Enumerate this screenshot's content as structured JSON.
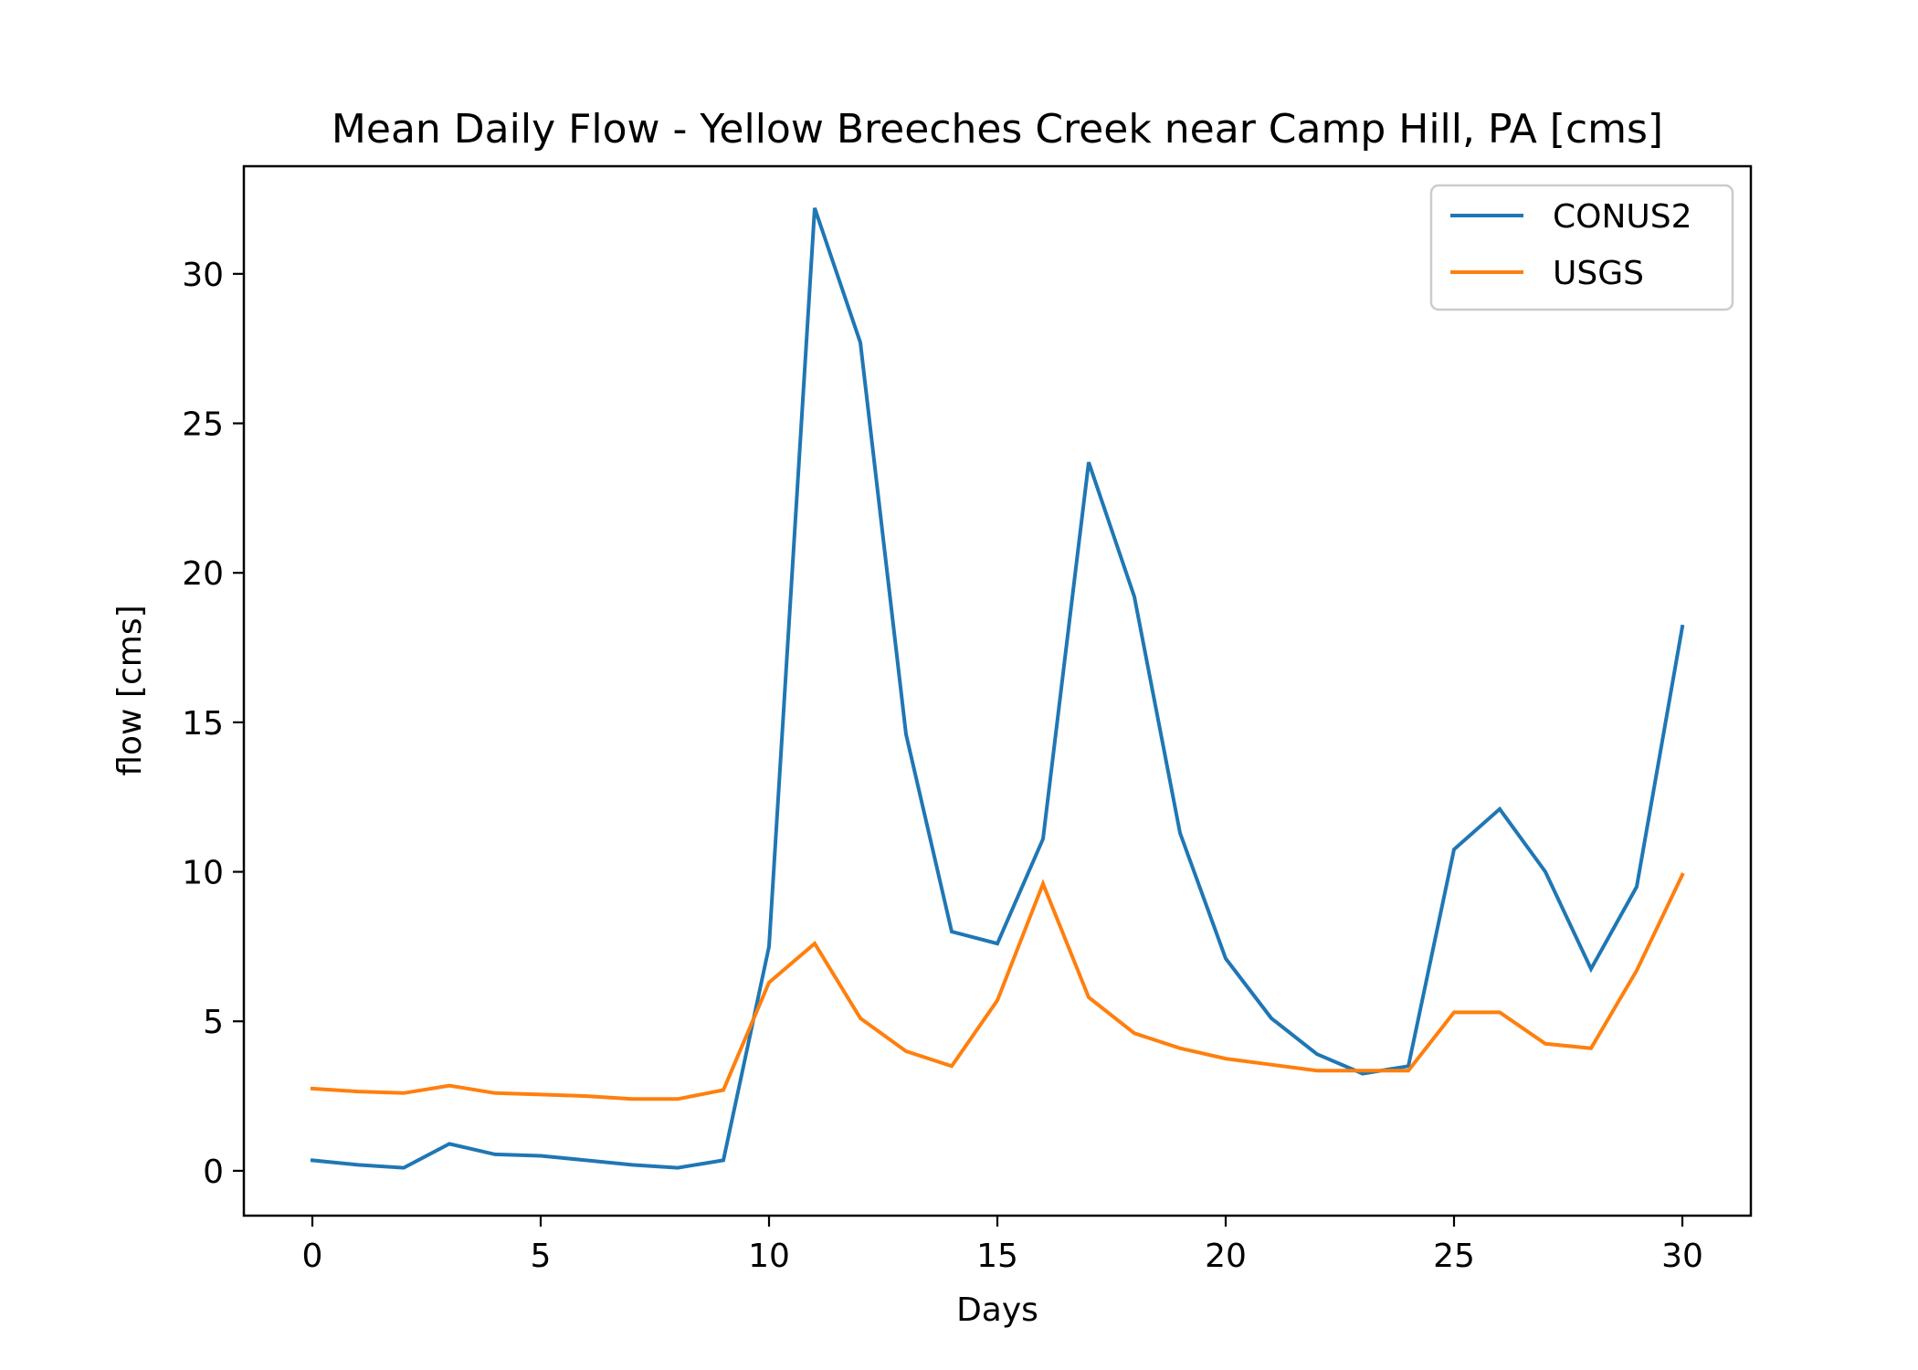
{
  "chart_data": {
    "type": "line",
    "title": "Mean Daily Flow - Yellow Breeches Creek near Camp Hill, PA [cms]",
    "xlabel": "Days",
    "ylabel": "flow [cms]",
    "xlim": [
      -1.5,
      31.5
    ],
    "ylim": [
      -1.5,
      33.6
    ],
    "xticks": [
      0,
      5,
      10,
      15,
      20,
      25,
      30
    ],
    "yticks": [
      0,
      5,
      10,
      15,
      20,
      25,
      30
    ],
    "x": [
      0,
      1,
      2,
      3,
      4,
      5,
      6,
      7,
      8,
      9,
      10,
      11,
      12,
      13,
      14,
      15,
      16,
      17,
      18,
      19,
      20,
      21,
      22,
      23,
      24,
      25,
      26,
      27,
      28,
      29,
      30
    ],
    "series": [
      {
        "name": "CONUS2",
        "color": "#1f77b4",
        "values": [
          0.35,
          0.2,
          0.1,
          0.9,
          0.55,
          0.5,
          0.35,
          0.2,
          0.1,
          0.35,
          7.5,
          32.2,
          27.7,
          14.6,
          8.0,
          7.6,
          11.1,
          23.7,
          19.2,
          11.3,
          7.1,
          5.1,
          3.9,
          3.25,
          3.5,
          10.75,
          12.1,
          10.0,
          6.75,
          9.5,
          18.2
        ]
      },
      {
        "name": "USGS",
        "color": "#ff7f0e",
        "values": [
          2.75,
          2.65,
          2.6,
          2.85,
          2.6,
          2.55,
          2.5,
          2.4,
          2.4,
          2.7,
          6.3,
          7.6,
          5.1,
          4.0,
          3.5,
          5.7,
          9.6,
          5.8,
          4.6,
          4.1,
          3.75,
          3.55,
          3.35,
          3.35,
          3.35,
          5.3,
          5.3,
          4.25,
          4.1,
          6.7,
          9.9
        ]
      }
    ],
    "legend": "top-right",
    "grid": false
  }
}
